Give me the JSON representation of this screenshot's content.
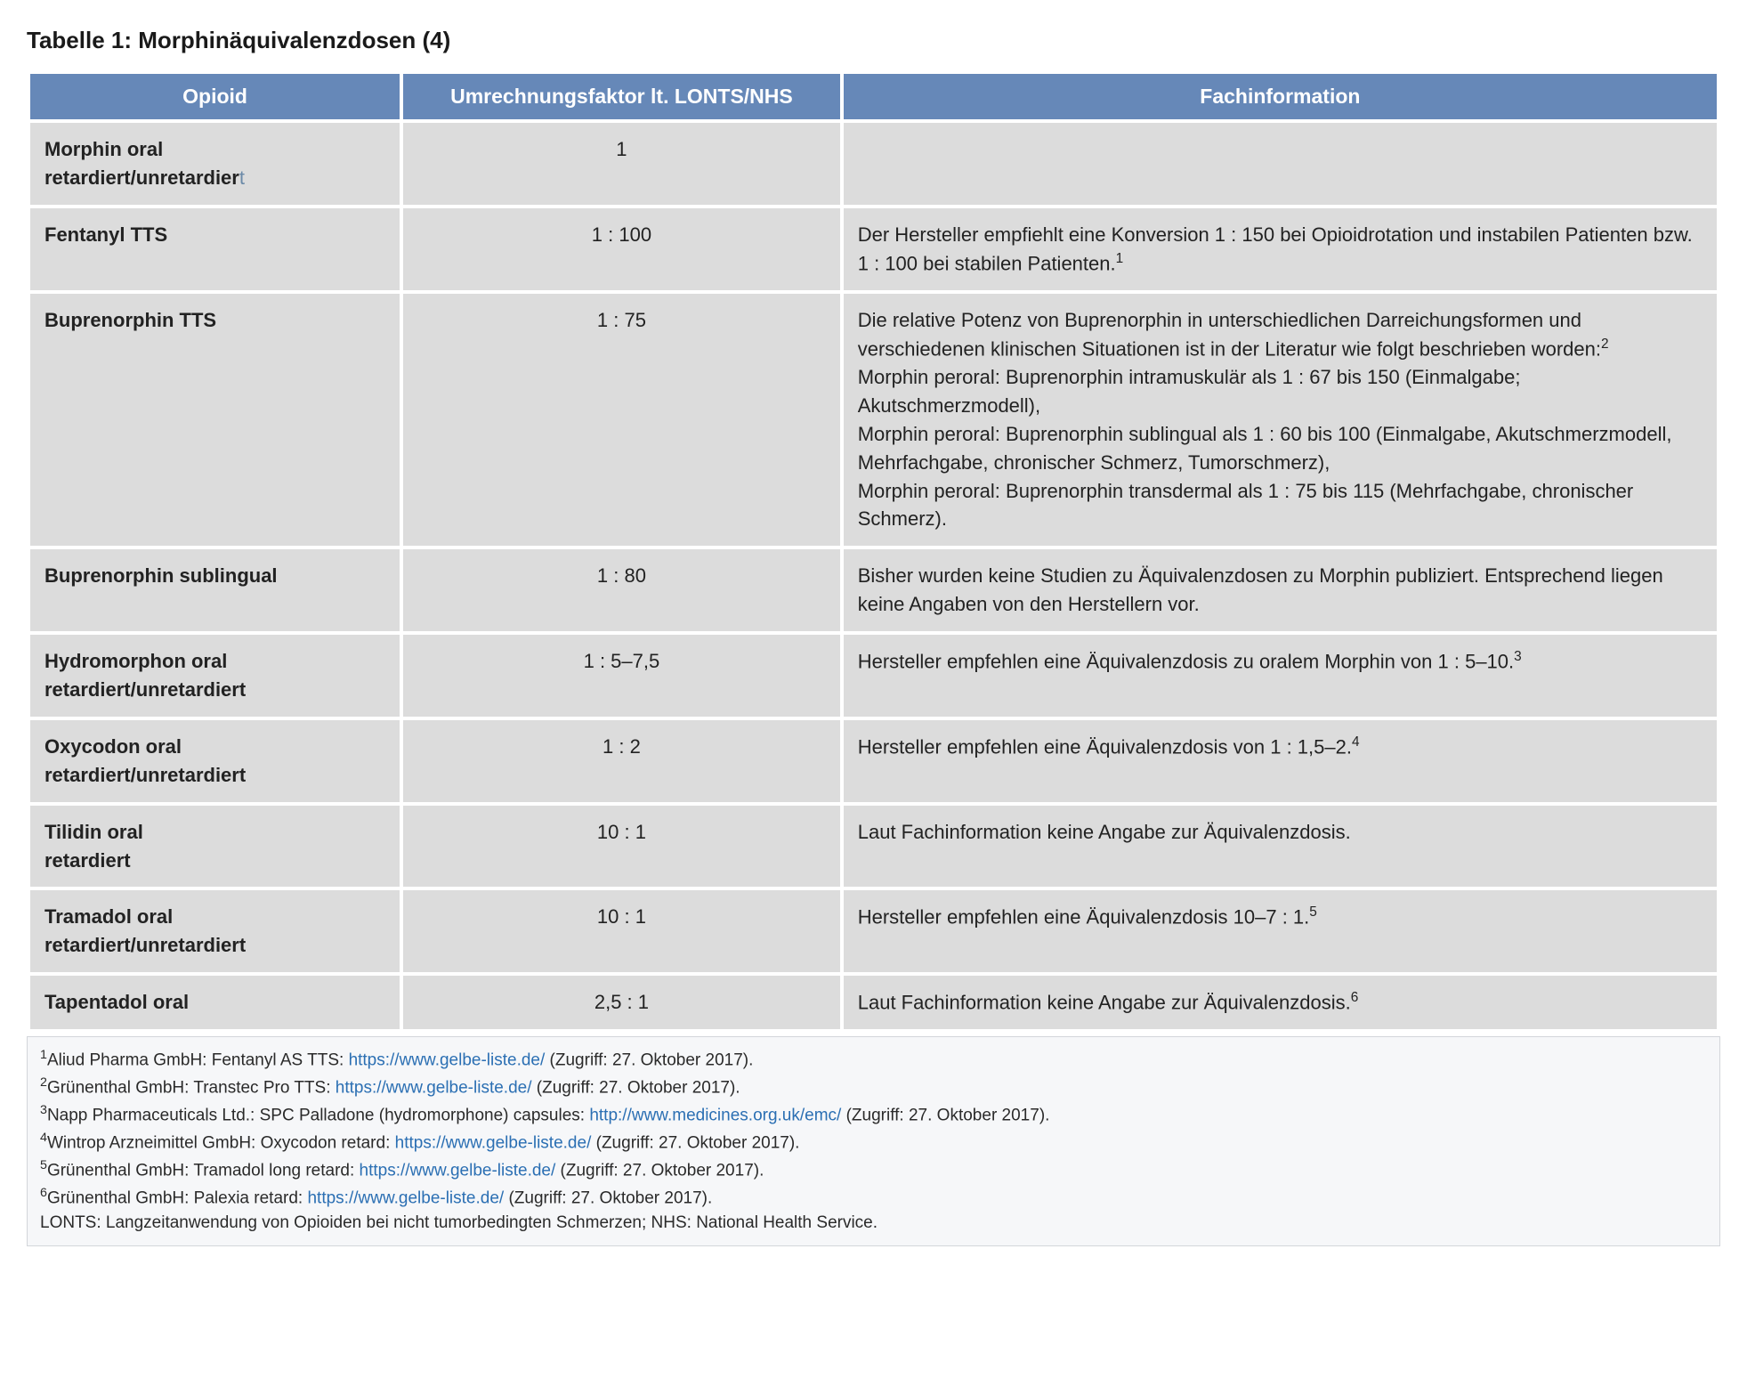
{
  "title": "Tabelle 1: Morphinäquivalenzdosen (4)",
  "columns": {
    "c1": "Opioid",
    "c2": "Umrechnungsfaktor lt. LONTS/NHS",
    "c3": "Fachinformation"
  },
  "col_widths_pct": [
    22,
    26,
    52
  ],
  "header_bg": "#6688b8",
  "header_color": "#ffffff",
  "cell_bg": "#dcdcdc",
  "footnote_bg": "#f6f7f9",
  "footnote_border": "#d3d6da",
  "link_color": "#2b6fb3",
  "rows": [
    {
      "opioid_html": "Morphin oral<br>retardiert/unretardier<span class='thin-t'>t</span>",
      "factor": "1",
      "info_html": ""
    },
    {
      "opioid_html": "Fentanyl TTS",
      "factor": "1 : 100",
      "info_html": "Der Hersteller empfiehlt eine Konversion 1 : 150 bei Opioidrotation und instabilen Patienten bzw. 1 : 100 bei stabilen Patienten.<sup>1</sup>"
    },
    {
      "opioid_html": "Buprenorphin TTS",
      "factor": "1 : 75",
      "info_html": "Die relative Potenz von Buprenorphin in unterschiedlichen Darreichungsformen und verschiedenen klinischen Situationen ist in der Literatur wie folgt beschrieben worden:<sup>2</sup><br>Morphin peroral: Buprenorphin intramuskulär als 1 : 67 bis 150 (Einmalgabe; Akutschmerzmodell),<br>Morphin peroral: Buprenorphin sublingual als 1 : 60 bis 100 (Einmalgabe, Akutschmerzmodell, Mehrfachgabe, chronischer Schmerz, Tumorschmerz),<br>Morphin peroral: Buprenorphin transdermal als 1 : 75 bis 115 (Mehrfachgabe, chronischer Schmerz)."
    },
    {
      "opioid_html": "Buprenorphin sublingual",
      "factor": "1 : 80",
      "info_html": "Bisher wurden keine Studien zu Äquivalenzdosen zu Morphin publiziert. Entsprechend liegen keine Angaben von den Herstellern vor."
    },
    {
      "opioid_html": "Hydromorphon oral<br>retardiert/unretardiert",
      "factor": "1 : 5–7,5",
      "info_html": "Hersteller empfehlen eine Äquivalenzdosis zu oralem Morphin von 1 : 5–10.<sup>3</sup>"
    },
    {
      "opioid_html": "Oxycodon oral<br>retardiert/unretardiert",
      "factor": "1 : 2",
      "info_html": "Hersteller empfehlen eine Äquivalenzdosis von 1 : 1,5–2.<sup>4</sup>"
    },
    {
      "opioid_html": "Tilidin oral<br>retardiert",
      "factor": "10 : 1",
      "info_html": "Laut Fachinformation keine Angabe zur Äquivalenzdosis."
    },
    {
      "opioid_html": "Tramadol oral<br>retardiert/unretardiert",
      "factor": "10 : 1",
      "info_html": "Hersteller empfehlen eine Äquivalenzdosis 10–7 : 1.<sup>5</sup>"
    },
    {
      "opioid_html": "Tapentadol oral",
      "factor": "2,5 : 1",
      "info_html": "Laut Fachinformation keine Angabe zur Äquivalenzdosis.<sup>6</sup>"
    }
  ],
  "footnotes": [
    {
      "sup": "1",
      "prefix": "Aliud Pharma GmbH: Fentanyl AS TTS: ",
      "link": "https://www.gelbe-liste.de/",
      "suffix": " (Zugriff: 27. Oktober 2017)."
    },
    {
      "sup": "2",
      "prefix": "Grünenthal GmbH: Transtec Pro TTS: ",
      "link": "https://www.gelbe-liste.de/",
      "suffix": " (Zugriff: 27. Oktober 2017)."
    },
    {
      "sup": "3",
      "prefix": "Napp Pharmaceuticals Ltd.: SPC Palladone (hydromorphone) capsules: ",
      "link": "http://www.medicines.org.uk/emc/",
      "suffix": " (Zugriff: 27. Oktober 2017)."
    },
    {
      "sup": "4",
      "prefix": "Wintrop Arzneimittel GmbH: Oxycodon retard: ",
      "link": "https://www.gelbe-liste.de/",
      "suffix": " (Zugriff: 27. Oktober 2017)."
    },
    {
      "sup": "5",
      "prefix": "Grünenthal GmbH: Tramadol long retard: ",
      "link": "https://www.gelbe-liste.de/",
      "suffix": " (Zugriff: 27. Oktober 2017)."
    },
    {
      "sup": "6",
      "prefix": "Grünenthal GmbH: Palexia retard: ",
      "link": "https://www.gelbe-liste.de/",
      "suffix": " (Zugriff: 27. Oktober 2017)."
    }
  ],
  "abbrev_line": "LONTS: Langzeitanwendung von Opioiden bei nicht tumorbedingten Schmerzen; NHS: National Health Service."
}
